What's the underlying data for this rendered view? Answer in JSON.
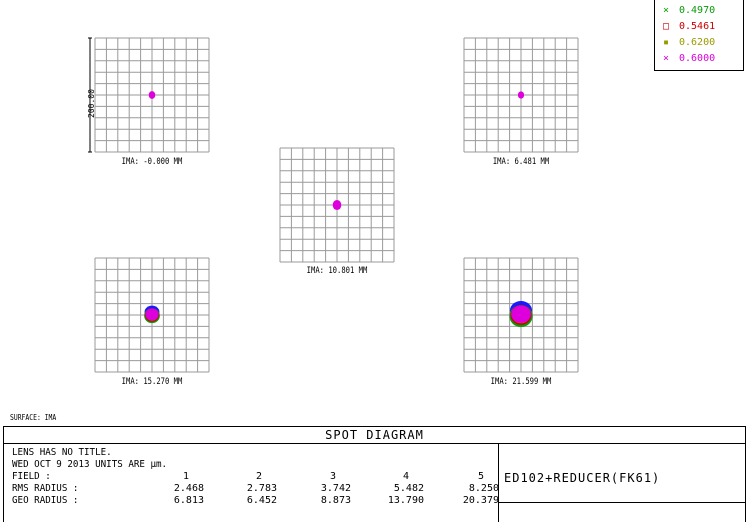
{
  "legend": {
    "entries": [
      {
        "symbol": "×",
        "wavelength": "0.4970",
        "color": "#0a9a0a"
      },
      {
        "symbol": "□",
        "wavelength": "0.5461",
        "color": "#cc0000"
      },
      {
        "symbol": "▪",
        "wavelength": "0.6200",
        "color": "#9a9a00"
      },
      {
        "symbol": "×",
        "wavelength": "0.6000",
        "color": "#dd00dd"
      }
    ]
  },
  "scale_bar_label": "200.00",
  "surface_label": "SURFACE: IMA",
  "spot_title": "SPOT DIAGRAM",
  "info": {
    "line1": "LENS HAS NO TITLE.",
    "line2": "WED OCT 9 2013  UNITS ARE µm.",
    "field_label": "FIELD     :",
    "rms_label": "RMS RADIUS :",
    "geo_label": "GEO RADIUS :"
  },
  "design_name": "ED102+REDUCER(FK61)",
  "chart_data": {
    "type": "scatter",
    "title": "SPOT DIAGRAM",
    "units": "µm",
    "fields": [
      {
        "field": "1",
        "ima": "IMA: -0.000 MM",
        "rms_radius": "2.468",
        "geo_radius": "6.813"
      },
      {
        "field": "2",
        "ima": "IMA: 6.481 MM",
        "rms_radius": "2.783",
        "geo_radius": "6.452"
      },
      {
        "field": "3",
        "ima": "IMA: 10.801 MM",
        "rms_radius": "3.742",
        "geo_radius": "8.873"
      },
      {
        "field": "4",
        "ima": "IMA: 15.270 MM",
        "rms_radius": "5.482",
        "geo_radius": "13.790"
      },
      {
        "field": "5",
        "ima": "IMA: 21.599 MM",
        "rms_radius": "8.250",
        "geo_radius": "20.379"
      }
    ],
    "box_size_um": 200,
    "grid": true,
    "legend_position": "top-right"
  }
}
